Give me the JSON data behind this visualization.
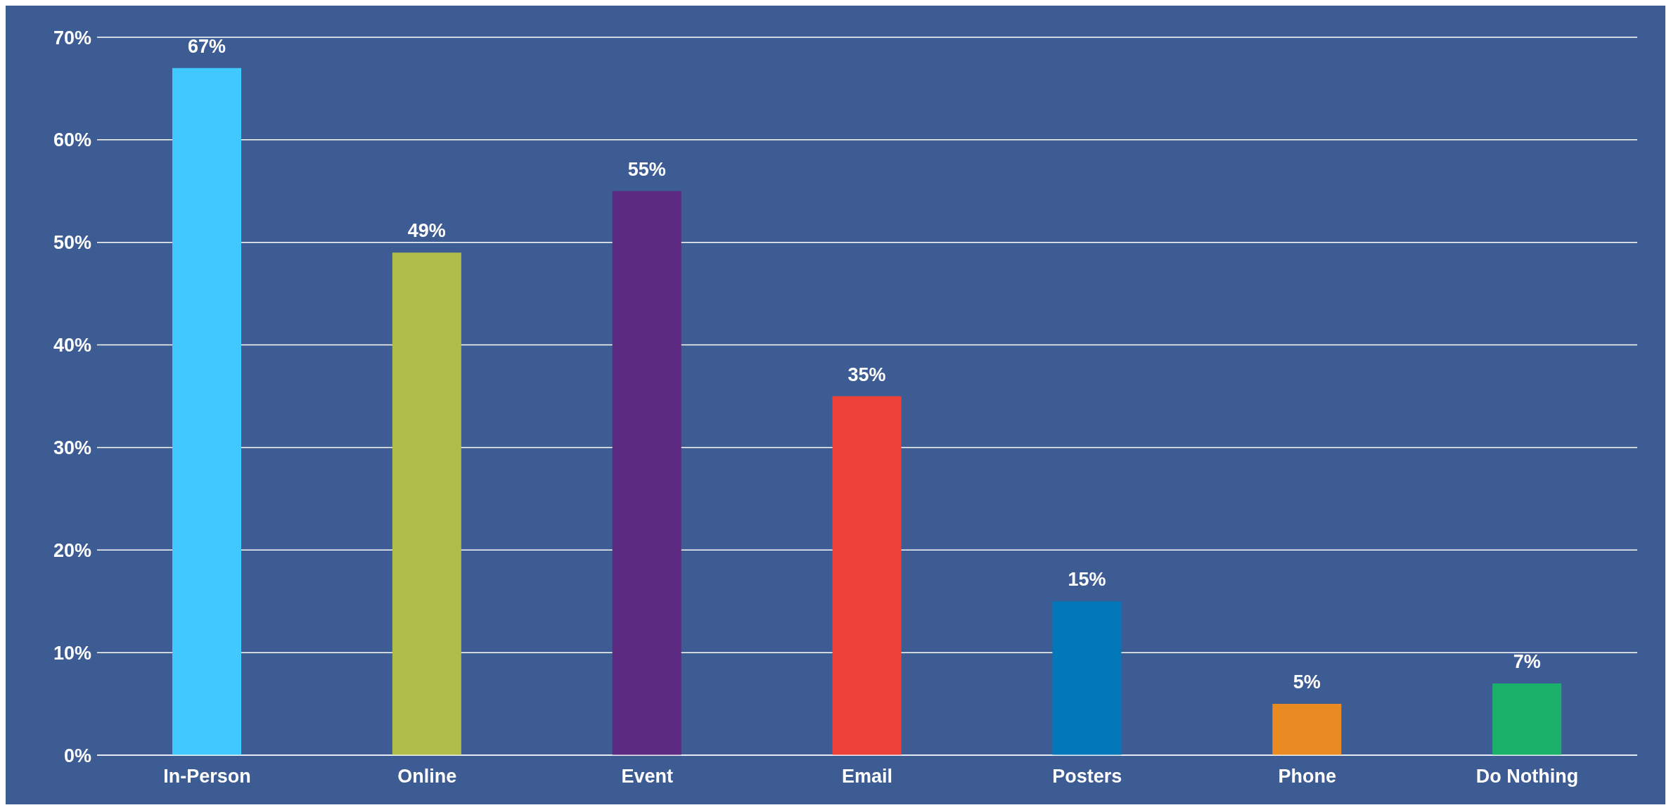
{
  "chart_data": {
    "type": "bar",
    "categories": [
      "In-Person",
      "Online",
      "Event",
      "Email",
      "Posters",
      "Phone",
      "Do Nothing"
    ],
    "values": [
      67,
      49,
      55,
      35,
      15,
      5,
      7
    ],
    "colors": [
      "#40c8ff",
      "#b0bc48",
      "#5c2a80",
      "#ee4139",
      "#0278b8",
      "#ea8a22",
      "#1bb06a"
    ],
    "value_labels": [
      "67%",
      "49%",
      "55%",
      "35%",
      "15%",
      "5%",
      "7%"
    ],
    "ylim": [
      0,
      70
    ],
    "yticks": [
      {
        "value": 0,
        "label": "0%"
      },
      {
        "value": 10,
        "label": "10%"
      },
      {
        "value": 20,
        "label": "20%"
      },
      {
        "value": 30,
        "label": "30%"
      },
      {
        "value": 40,
        "label": "40%"
      },
      {
        "value": 50,
        "label": "50%"
      },
      {
        "value": 60,
        "label": "60%"
      },
      {
        "value": 70,
        "label": "70%"
      }
    ],
    "grid": "y"
  }
}
